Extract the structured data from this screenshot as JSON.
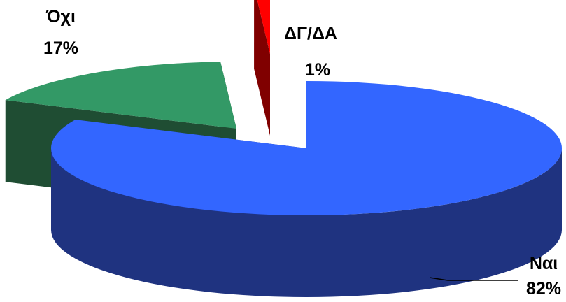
{
  "chart_data": {
    "type": "pie",
    "style": "3d-exploded",
    "title": "",
    "slices": [
      {
        "label": "Ναι",
        "value": 82,
        "value_label": "82%",
        "color": "#3366FF",
        "side_color": "#1F3380"
      },
      {
        "label": "Όχι",
        "value": 17,
        "value_label": "17%",
        "color": "#339966",
        "side_color": "#1F4D33"
      },
      {
        "label": "ΔΓ/ΔΑ",
        "value": 1,
        "value_label": "1%",
        "color": "#FF0000",
        "side_color": "#800000"
      }
    ]
  }
}
